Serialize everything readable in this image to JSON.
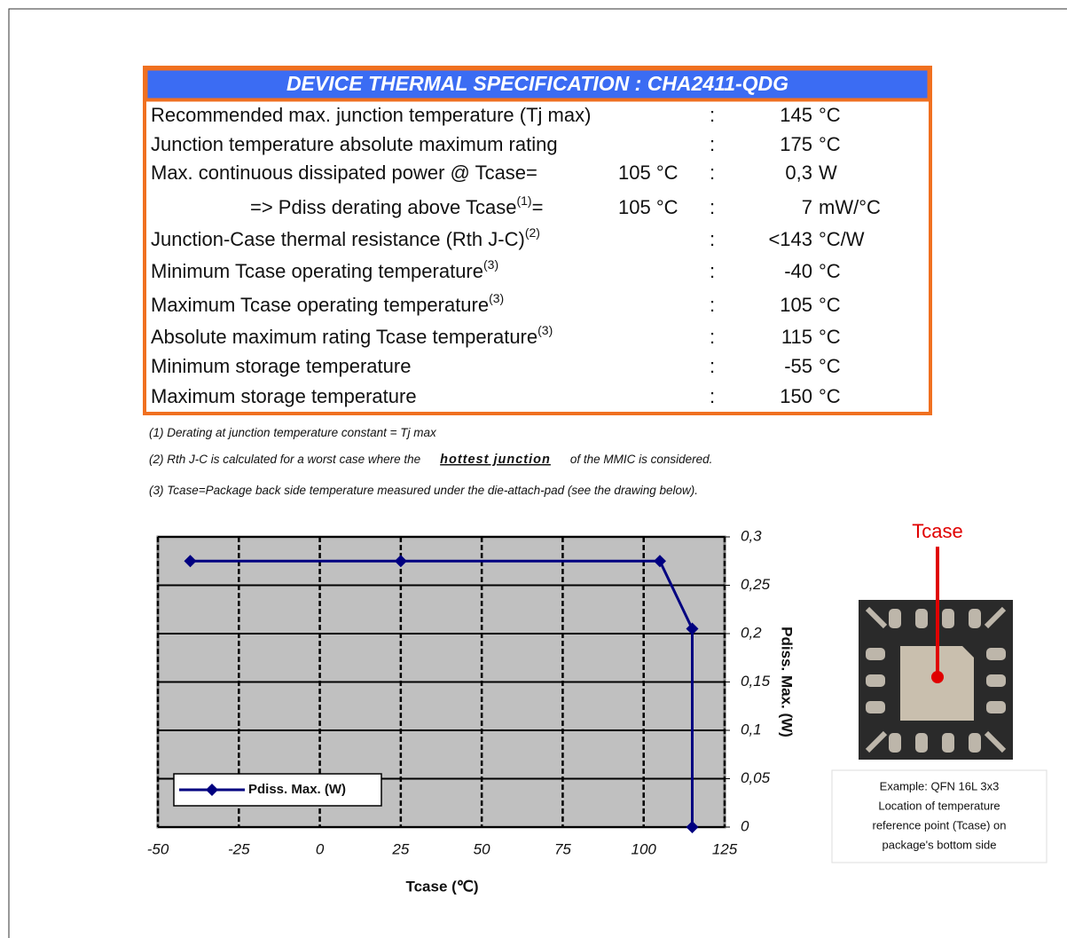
{
  "title": "DEVICE THERMAL SPECIFICATION : CHA2411-QDG",
  "separator": ":",
  "rows": [
    {
      "label": "Recommended max. junction temperature (Tj max)",
      "value": "145",
      "unit": "°C"
    },
    {
      "label": "Junction temperature absolute maximum rating",
      "value": "175",
      "unit": "°C"
    },
    {
      "label": "Max. continuous dissipated power @ Tcase=",
      "param": "105 °C",
      "value": "0,3",
      "unit": "W"
    },
    {
      "label": "=> Pdiss derating above Tcase",
      "sup": "(1)",
      "suffix": "=",
      "param": "105 °C",
      "value": "7",
      "unit": "mW/°C"
    },
    {
      "label": "Junction-Case thermal resistance (Rth J-C)",
      "sup": "(2)",
      "value": "<143",
      "unit": "°C/W"
    },
    {
      "label": "Minimum Tcase operating temperature",
      "sup": "(3)",
      "value": "-40",
      "unit": "°C"
    },
    {
      "label": "Maximum Tcase operating temperature",
      "sup": "(3)",
      "value": "105",
      "unit": "°C"
    },
    {
      "label": "Absolute maximum rating Tcase temperature",
      "sup": "(3)",
      "value": "115",
      "unit": "°C"
    },
    {
      "label": "Minimum storage temperature",
      "value": "-55",
      "unit": "°C"
    },
    {
      "label": "Maximum storage temperature",
      "value": "150",
      "unit": "°C"
    }
  ],
  "notes": [
    {
      "before": "(1) Derating at junction temperature constant = Tj max"
    },
    {
      "before": "(2) Rth J-C is calculated for a worst case where the",
      "emph": "hottest junction",
      "after": "of the MMIC is considered."
    },
    {
      "before": "(3) Tcase=Package back side temperature measured under the die-attach-pad (see the drawing below)."
    }
  ],
  "chart_data": {
    "type": "line",
    "x": [
      -40,
      25,
      105,
      115,
      115
    ],
    "series": [
      {
        "name": "Pdiss. Max. (W)",
        "color": "#000080",
        "values": [
          0.275,
          0.275,
          0.275,
          0.205,
          0
        ]
      }
    ],
    "xlim": [
      -50,
      125
    ],
    "ylim": [
      0,
      0.3
    ],
    "xticks": [
      -50,
      -25,
      0,
      25,
      50,
      75,
      100,
      125
    ],
    "yticks": [
      0,
      {
        "value": 0.05,
        "label": "0,05"
      },
      {
        "value": 0.1,
        "label": "0,1"
      },
      {
        "value": 0.15,
        "label": "0,15"
      },
      {
        "value": 0.2,
        "label": "0,2"
      },
      {
        "value": 0.25,
        "label": "0,25"
      },
      {
        "value": 0.3,
        "label": "0,3"
      }
    ],
    "xlabel": "Tcase (℃)",
    "ylabel": "Pdiss. Max. (W)",
    "grid": true,
    "background": "#c0c0c0",
    "legend": "lower left"
  },
  "figure": {
    "label": "Tcase",
    "caption": [
      "Example: QFN 16L 3x3",
      "Location of temperature",
      "reference point (Tcase) on",
      "package's bottom side"
    ]
  }
}
